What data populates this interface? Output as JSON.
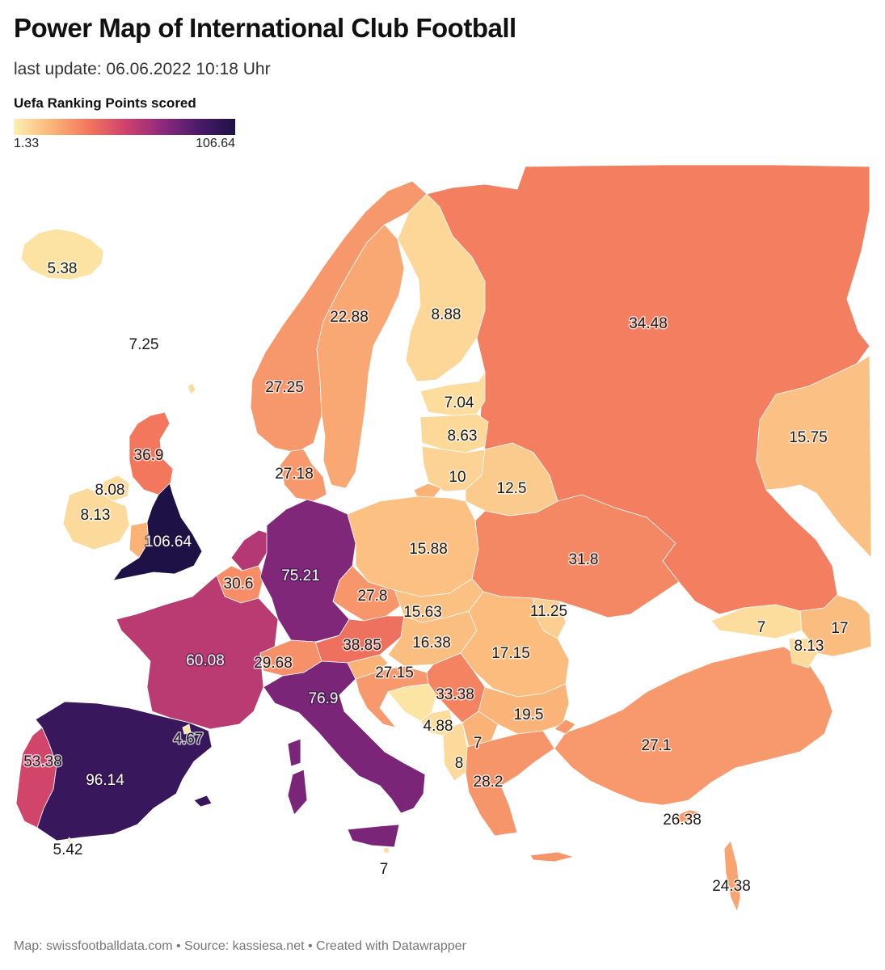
{
  "header": {
    "title": "Power Map of International Club Football",
    "subtitle": "last update: 06.06.2022 10:18 Uhr"
  },
  "legend": {
    "title": "Uefa Ranking Points scored",
    "min_label": "1.33",
    "max_label": "106.64",
    "min": 1.33,
    "max": 106.64,
    "colors": [
      "#fcf0b0",
      "#fbb679",
      "#f3785d",
      "#d1436b",
      "#8f2a7e",
      "#4b1b6b",
      "#1e1146"
    ]
  },
  "regions": [
    {
      "id": "iceland",
      "label": "5.38",
      "value": 5.38
    },
    {
      "id": "faroe",
      "label": "7.25",
      "value": 7.25
    },
    {
      "id": "norway",
      "label": "27.25",
      "value": 27.25
    },
    {
      "id": "sweden",
      "label": "22.88",
      "value": 22.88
    },
    {
      "id": "finland",
      "label": "8.88",
      "value": 8.88
    },
    {
      "id": "russia",
      "label": "34.48",
      "value": 34.48
    },
    {
      "id": "kazakhstan",
      "label": "15.75",
      "value": 15.75
    },
    {
      "id": "estonia",
      "label": "7.04",
      "value": 7.04
    },
    {
      "id": "latvia",
      "label": "8.63",
      "value": 8.63
    },
    {
      "id": "lithuania",
      "label": "10",
      "value": 10
    },
    {
      "id": "belarus",
      "label": "12.5",
      "value": 12.5
    },
    {
      "id": "scotland",
      "label": "36.9",
      "value": 36.9
    },
    {
      "id": "northern-ireland",
      "label": "8.08",
      "value": 8.08
    },
    {
      "id": "ireland",
      "label": "8.13",
      "value": 8.13
    },
    {
      "id": "england",
      "label": "106.64",
      "value": 106.64
    },
    {
      "id": "denmark",
      "label": "27.18",
      "value": 27.18
    },
    {
      "id": "netherlands",
      "label": "",
      "value": 62.0
    },
    {
      "id": "belgium",
      "label": "30.6",
      "value": 30.6
    },
    {
      "id": "germany",
      "label": "75.21",
      "value": 75.21
    },
    {
      "id": "poland",
      "label": "15.88",
      "value": 15.88
    },
    {
      "id": "ukraine",
      "label": "31.8",
      "value": 31.8
    },
    {
      "id": "czechia",
      "label": "27.8",
      "value": 27.8
    },
    {
      "id": "slovakia",
      "label": "15.63",
      "value": 15.63
    },
    {
      "id": "moldova",
      "label": "11.25",
      "value": 11.25
    },
    {
      "id": "austria",
      "label": "38.85",
      "value": 38.85
    },
    {
      "id": "hungary",
      "label": "16.38",
      "value": 16.38
    },
    {
      "id": "romania",
      "label": "17.15",
      "value": 17.15
    },
    {
      "id": "france",
      "label": "60.08",
      "value": 60.08
    },
    {
      "id": "switzerland",
      "label": "29.68",
      "value": 29.68
    },
    {
      "id": "italy",
      "label": "76.9",
      "value": 76.9
    },
    {
      "id": "croatia",
      "label": "27.15",
      "value": 27.15
    },
    {
      "id": "serbia",
      "label": "33.38",
      "value": 33.38
    },
    {
      "id": "bosnia",
      "label": "4.88",
      "value": 4.88
    },
    {
      "id": "montenegro",
      "label": "7",
      "value": 7
    },
    {
      "id": "albania",
      "label": "8",
      "value": 8
    },
    {
      "id": "bulgaria",
      "label": "19.5",
      "value": 19.5
    },
    {
      "id": "greece",
      "label": "28.2",
      "value": 28.2
    },
    {
      "id": "turkey",
      "label": "27.1",
      "value": 27.1
    },
    {
      "id": "cyprus",
      "label": "26.38",
      "value": 26.38
    },
    {
      "id": "israel",
      "label": "24.38",
      "value": 24.38
    },
    {
      "id": "georgia",
      "label": "7",
      "value": 7
    },
    {
      "id": "armenia",
      "label": "8.13",
      "value": 8.13
    },
    {
      "id": "azerbaijan",
      "label": "17",
      "value": 17
    },
    {
      "id": "spain",
      "label": "96.14",
      "value": 96.14
    },
    {
      "id": "portugal",
      "label": "53.38",
      "value": 53.38
    },
    {
      "id": "andorra",
      "label": "4.67",
      "value": 4.67
    },
    {
      "id": "gibraltar",
      "label": "5.42",
      "value": 5.42
    },
    {
      "id": "malta",
      "label": "7",
      "value": 7
    }
  ],
  "footer": {
    "text": "Map: swissfootballdata.com • Source: kassiesa.net • Created with Datawrapper"
  }
}
